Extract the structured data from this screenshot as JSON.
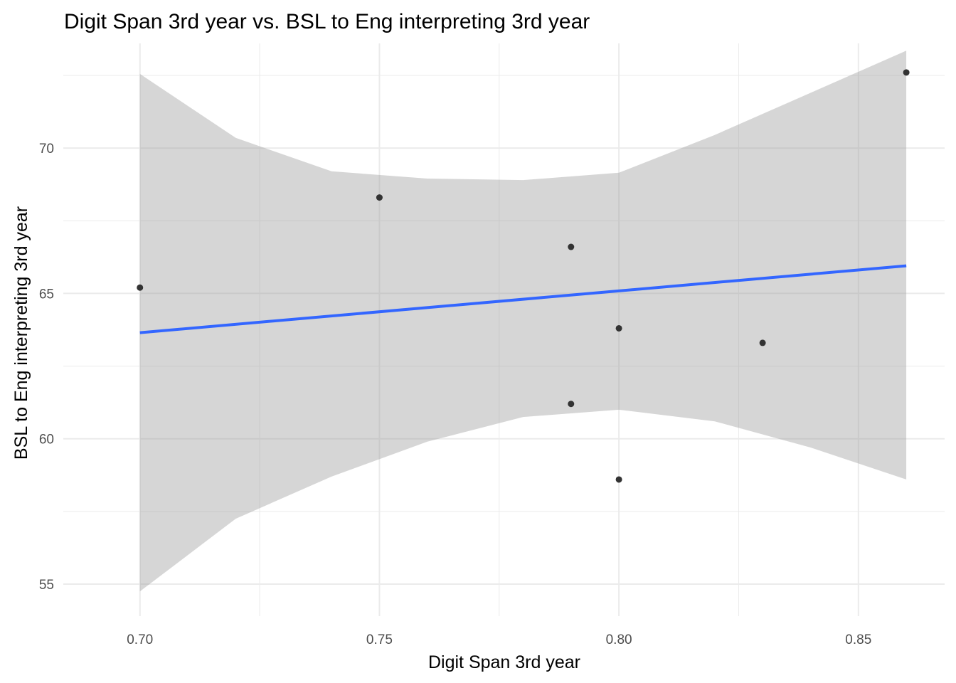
{
  "chart_data": {
    "type": "scatter",
    "title": "Digit Span 3rd year vs. BSL to Eng interpreting 3rd year",
    "xlabel": "Digit Span 3rd year",
    "ylabel": "BSL to Eng interpreting 3rd year",
    "xlim": [
      0.684,
      0.868
    ],
    "ylim": [
      53.9,
      73.6
    ],
    "x_ticks": [
      0.7,
      0.75,
      0.8,
      0.85
    ],
    "x_tick_labels": [
      "0.70",
      "0.75",
      "0.80",
      "0.85"
    ],
    "y_ticks": [
      55,
      60,
      65,
      70
    ],
    "y_tick_labels": [
      "55",
      "60",
      "65",
      "70"
    ],
    "grid": true,
    "points": [
      {
        "x": 0.7,
        "y": 65.2
      },
      {
        "x": 0.75,
        "y": 68.3
      },
      {
        "x": 0.79,
        "y": 66.6
      },
      {
        "x": 0.79,
        "y": 61.2
      },
      {
        "x": 0.8,
        "y": 63.8
      },
      {
        "x": 0.8,
        "y": 58.6
      },
      {
        "x": 0.83,
        "y": 63.3
      },
      {
        "x": 0.86,
        "y": 72.6
      }
    ],
    "fit_line": {
      "method": "linear regression",
      "x_start": 0.7,
      "y_start": 63.65,
      "x_end": 0.86,
      "y_end": 65.95
    },
    "confidence_band": {
      "x": [
        0.7,
        0.72,
        0.74,
        0.76,
        0.78,
        0.8,
        0.82,
        0.84,
        0.86
      ],
      "upper": [
        72.55,
        70.35,
        69.2,
        68.95,
        68.9,
        69.15,
        70.45,
        71.9,
        73.35
      ],
      "lower": [
        54.75,
        57.25,
        58.7,
        59.9,
        60.75,
        61.0,
        60.6,
        59.7,
        58.6
      ]
    },
    "colors": {
      "points": "#333333",
      "fit_line": "#3366ff",
      "band": "#999999",
      "grid": "#ebebeb"
    }
  }
}
